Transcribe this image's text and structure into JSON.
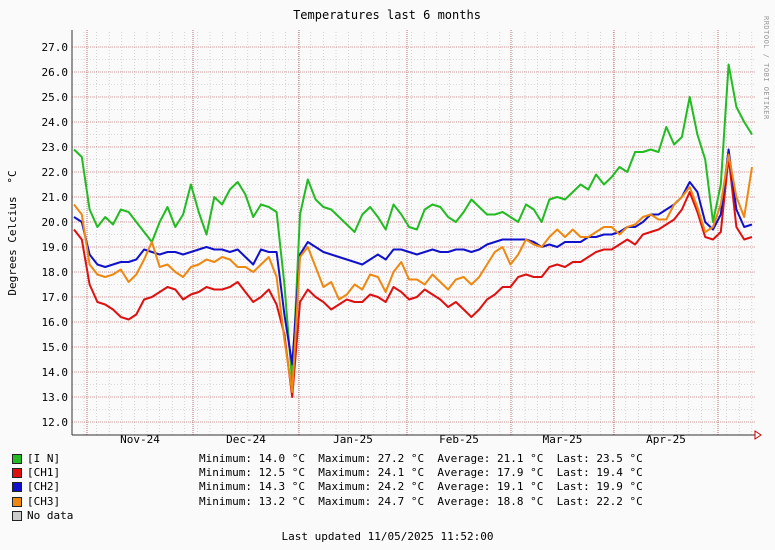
{
  "chart_data": {
    "type": "line",
    "title": "Temperatures last 6 months",
    "ylabel": "Degrees Celcius",
    "yunit": "°C",
    "ylim": [
      12.0,
      27.0
    ],
    "yticks": [
      "12.0",
      "13.0",
      "14.0",
      "15.0",
      "16.0",
      "17.0",
      "18.0",
      "19.0",
      "20.0",
      "21.0",
      "22.0",
      "23.0",
      "24.0",
      "25.0",
      "26.0",
      "27.0"
    ],
    "x_month_labels": [
      "Nov-24",
      "Dec-24",
      "Jan-25",
      "Feb-25",
      "Mar-25",
      "Apr-25"
    ],
    "grid": true,
    "series": [
      {
        "name": "[I N]",
        "color": "#22bb22",
        "values": [
          22.9,
          22.6,
          20.5,
          19.8,
          20.2,
          19.9,
          20.5,
          20.4,
          20.0,
          19.6,
          19.2,
          20.0,
          20.6,
          19.8,
          20.3,
          21.5,
          20.4,
          19.5,
          21.0,
          20.7,
          21.3,
          21.6,
          21.1,
          20.2,
          20.7,
          20.6,
          20.4,
          17.5,
          13.6,
          20.3,
          21.7,
          20.9,
          20.6,
          20.5,
          20.2,
          19.9,
          19.6,
          20.3,
          20.6,
          20.2,
          19.7,
          20.7,
          20.3,
          19.8,
          19.7,
          20.5,
          20.7,
          20.6,
          20.2,
          20.0,
          20.4,
          20.9,
          20.6,
          20.3,
          20.3,
          20.4,
          20.2,
          20.0,
          20.7,
          20.5,
          20.0,
          20.9,
          21.0,
          20.9,
          21.2,
          21.5,
          21.3,
          21.9,
          21.5,
          21.8,
          22.2,
          22.0,
          22.8,
          22.8,
          22.9,
          22.8,
          23.8,
          23.1,
          23.4,
          25.0,
          23.5,
          22.5,
          20.0,
          21.5,
          26.3,
          24.6,
          24.0,
          23.5
        ],
        "stat": {
          "min": "14.0",
          "max": "27.2",
          "avg": "21.1",
          "last": "23.5"
        }
      },
      {
        "name": "[CH1]",
        "color": "#dd1111",
        "values": [
          19.7,
          19.3,
          17.5,
          16.8,
          16.7,
          16.5,
          16.2,
          16.1,
          16.3,
          16.9,
          17.0,
          17.2,
          17.4,
          17.3,
          16.9,
          17.1,
          17.2,
          17.4,
          17.3,
          17.3,
          17.4,
          17.6,
          17.2,
          16.8,
          17.0,
          17.3,
          16.7,
          15.5,
          13.0,
          16.8,
          17.3,
          17.0,
          16.8,
          16.5,
          16.7,
          16.9,
          16.8,
          16.8,
          17.1,
          17.0,
          16.8,
          17.4,
          17.2,
          16.9,
          17.0,
          17.3,
          17.1,
          16.9,
          16.6,
          16.8,
          16.5,
          16.2,
          16.5,
          16.9,
          17.1,
          17.4,
          17.4,
          17.8,
          17.9,
          17.8,
          17.8,
          18.2,
          18.3,
          18.2,
          18.4,
          18.4,
          18.6,
          18.8,
          18.9,
          18.9,
          19.1,
          19.3,
          19.1,
          19.5,
          19.6,
          19.7,
          19.9,
          20.1,
          20.5,
          21.2,
          20.4,
          19.4,
          19.3,
          19.6,
          22.6,
          19.8,
          19.3,
          19.4
        ],
        "stat": {
          "min": "12.5",
          "max": "24.1",
          "avg": "17.9",
          "last": "19.4"
        }
      },
      {
        "name": "[CH2]",
        "color": "#1111cc",
        "values": [
          20.2,
          20.0,
          18.7,
          18.3,
          18.2,
          18.3,
          18.4,
          18.4,
          18.5,
          18.9,
          18.8,
          18.7,
          18.8,
          18.8,
          18.7,
          18.8,
          18.9,
          19.0,
          18.9,
          18.9,
          18.8,
          18.9,
          18.6,
          18.3,
          18.9,
          18.8,
          18.8,
          16.3,
          14.3,
          18.7,
          19.2,
          19.0,
          18.8,
          18.7,
          18.6,
          18.5,
          18.4,
          18.3,
          18.5,
          18.7,
          18.5,
          18.9,
          18.9,
          18.8,
          18.7,
          18.8,
          18.9,
          18.8,
          18.8,
          18.9,
          18.9,
          18.8,
          18.9,
          19.1,
          19.2,
          19.3,
          19.3,
          19.3,
          19.3,
          19.2,
          19.0,
          19.1,
          19.0,
          19.2,
          19.2,
          19.2,
          19.4,
          19.4,
          19.5,
          19.5,
          19.6,
          19.8,
          19.8,
          20.0,
          20.3,
          20.3,
          20.5,
          20.7,
          21.0,
          21.6,
          21.2,
          20.0,
          19.7,
          20.3,
          22.9,
          20.5,
          19.8,
          19.9
        ],
        "stat": {
          "min": "14.3",
          "max": "24.2",
          "avg": "19.1",
          "last": "19.9"
        }
      },
      {
        "name": "[CH3]",
        "color": "#ee8811",
        "values": [
          20.7,
          20.3,
          18.3,
          17.9,
          17.8,
          17.9,
          18.1,
          17.6,
          17.9,
          18.5,
          19.2,
          18.2,
          18.3,
          18.0,
          17.8,
          18.2,
          18.3,
          18.5,
          18.4,
          18.6,
          18.5,
          18.2,
          18.2,
          18.0,
          18.3,
          18.6,
          17.8,
          15.3,
          13.2,
          18.6,
          19.0,
          18.2,
          17.4,
          17.6,
          16.9,
          17.1,
          17.5,
          17.3,
          17.9,
          17.8,
          17.2,
          18.0,
          18.4,
          17.7,
          17.7,
          17.5,
          17.9,
          17.6,
          17.3,
          17.7,
          17.8,
          17.5,
          17.8,
          18.3,
          18.8,
          19.0,
          18.3,
          18.7,
          19.3,
          19.1,
          19.0,
          19.4,
          19.7,
          19.4,
          19.7,
          19.4,
          19.4,
          19.6,
          19.8,
          19.8,
          19.5,
          19.8,
          19.9,
          20.2,
          20.3,
          20.1,
          20.1,
          20.7,
          21.0,
          21.4,
          20.6,
          19.6,
          19.8,
          20.7,
          22.7,
          21.0,
          20.2,
          22.2
        ],
        "stat": {
          "min": "13.2",
          "max": "24.7",
          "avg": "18.8",
          "last": "22.2"
        }
      }
    ]
  },
  "legend_extra": {
    "label": "No data",
    "color": "#cccccc"
  },
  "stat_labels": {
    "min": "Minimum:",
    "max": "Maximum:",
    "avg": "Average:",
    "last": "Last:",
    "unit": "°C"
  },
  "footer": "Last updated 11/05/2025 11:52:00",
  "credit": "RRDTOOL / TOBI OETIKER"
}
